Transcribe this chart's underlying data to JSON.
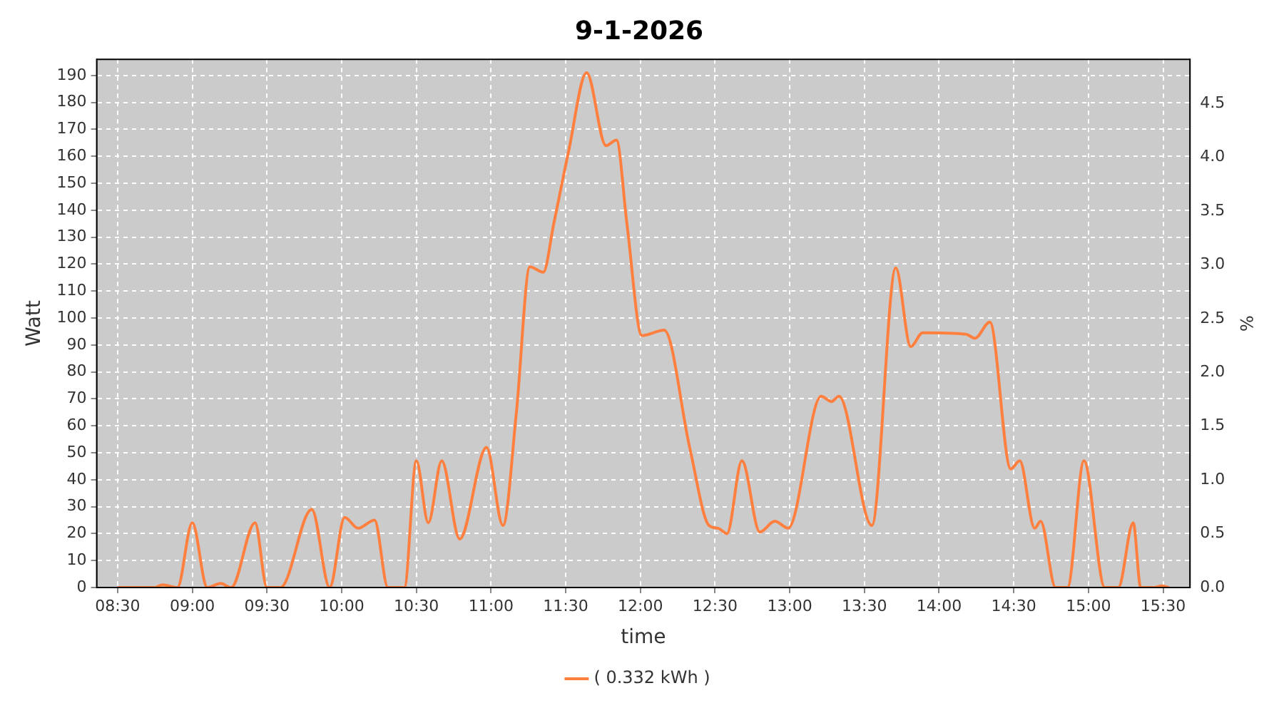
{
  "chart_data": {
    "type": "line",
    "title": "9-1-2026",
    "xlabel": "time",
    "ylabel": "Watt",
    "y2label": "%",
    "xlim": [
      8.36,
      15.68
    ],
    "xticks": [
      {
        "value": 8.5,
        "label": "08:30"
      },
      {
        "value": 9,
        "label": "09:00"
      },
      {
        "value": 9.5,
        "label": "09:30"
      },
      {
        "value": 10,
        "label": "10:00"
      },
      {
        "value": 10.5,
        "label": "10:30"
      },
      {
        "value": 11,
        "label": "11:00"
      },
      {
        "value": 11.5,
        "label": "11:30"
      },
      {
        "value": 12,
        "label": "12:00"
      },
      {
        "value": 12.5,
        "label": "12:30"
      },
      {
        "value": 13,
        "label": "13:00"
      },
      {
        "value": 13.5,
        "label": "13:30"
      },
      {
        "value": 14,
        "label": "14:00"
      },
      {
        "value": 14.5,
        "label": "14:30"
      },
      {
        "value": 15,
        "label": "15:00"
      },
      {
        "value": 15.5,
        "label": "15:30"
      }
    ],
    "ylim": [
      0,
      196
    ],
    "yticks": [
      0,
      10,
      20,
      30,
      40,
      50,
      60,
      70,
      80,
      90,
      100,
      110,
      120,
      130,
      140,
      150,
      160,
      170,
      180,
      190
    ],
    "y2lim": [
      0,
      4.91
    ],
    "y2ticks": [
      {
        "value": 0,
        "label": "0.0"
      },
      {
        "value": 0.5,
        "label": "0.5"
      },
      {
        "value": 1,
        "label": "1.0"
      },
      {
        "value": 1.5,
        "label": "1.5"
      },
      {
        "value": 2,
        "label": "2.0"
      },
      {
        "value": 2.5,
        "label": "2.5"
      },
      {
        "value": 3,
        "label": "3.0"
      },
      {
        "value": 3.5,
        "label": "3.5"
      },
      {
        "value": 4,
        "label": "4.0"
      },
      {
        "value": 4.5,
        "label": "4.5"
      }
    ],
    "grid": true,
    "legend": "bottom",
    "marker": "none",
    "line_style": "solid",
    "series": [
      {
        "name": "( 0.332 kWh )",
        "color": "#ff7f3f",
        "x": [
          8.5,
          8.75,
          8.8,
          8.9,
          9.0,
          9.1,
          9.19,
          9.26,
          9.42,
          9.5,
          9.59,
          9.8,
          9.92,
          10.02,
          10.11,
          10.22,
          10.31,
          10.42,
          10.5,
          10.58,
          10.67,
          10.79,
          10.97,
          11.08,
          11.17,
          11.26,
          11.35,
          11.42,
          11.52,
          11.64,
          11.77,
          11.84,
          11.91,
          12.01,
          12.16,
          12.33,
          12.46,
          12.52,
          12.58,
          12.68,
          12.8,
          12.9,
          12.99,
          13.21,
          13.28,
          13.33,
          13.55,
          13.71,
          13.81,
          13.89,
          14.18,
          14.24,
          14.34,
          14.48,
          14.54,
          14.64,
          14.68,
          14.78,
          14.86,
          14.97,
          15.11,
          15.2,
          15.3,
          15.35,
          15.44,
          15.49,
          15.54
        ],
        "values": [
          0,
          0,
          1,
          0,
          24,
          0,
          1.5,
          0,
          24,
          0,
          0,
          29,
          0,
          26,
          22,
          25,
          0,
          0,
          47,
          24,
          47,
          18,
          52,
          23,
          65,
          119,
          117,
          135,
          162,
          191,
          164,
          166,
          135,
          93.5,
          95.5,
          52,
          23,
          22,
          20,
          47,
          20.6,
          24.6,
          22,
          71,
          69,
          71,
          23,
          118.6,
          89.4,
          94.5,
          94,
          92.5,
          98.5,
          44,
          47,
          22,
          24.6,
          0,
          0,
          47,
          0,
          0,
          24,
          0,
          0,
          0.6,
          0
        ]
      }
    ]
  }
}
